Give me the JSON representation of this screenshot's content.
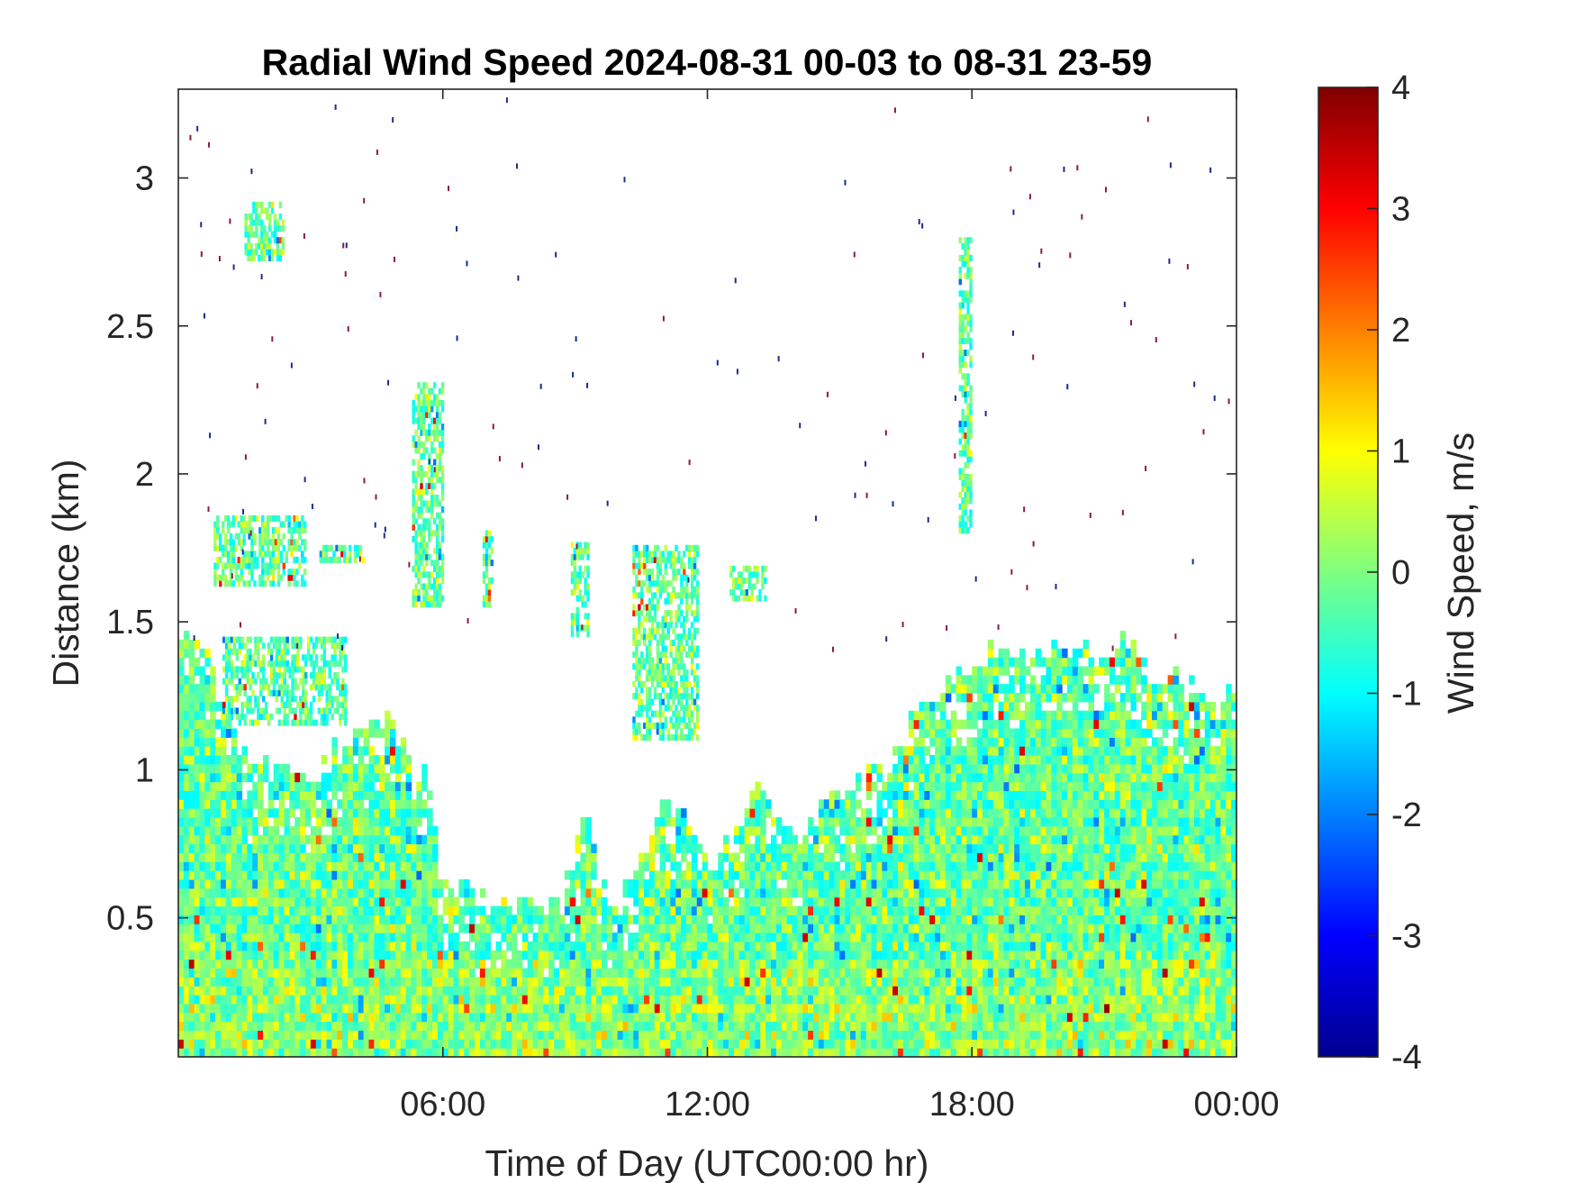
{
  "chart_data": {
    "type": "heatmap",
    "title": "Radial Wind Speed 2024-08-31 00-03 to 08-31 23-59",
    "xlabel": "Time of Day (UTC00:00 hr)",
    "ylabel": "Distance (km)",
    "colorbar_label": "Wind Speed, m/s",
    "colormap": "jet",
    "xlim_hours": [
      0,
      24
    ],
    "ylim_km": [
      0.03,
      3.3
    ],
    "clim": [
      -4,
      4
    ],
    "x_ticks": [
      {
        "hour": 6,
        "label": "06:00"
      },
      {
        "hour": 12,
        "label": "12:00"
      },
      {
        "hour": 18,
        "label": "18:00"
      },
      {
        "hour": 24,
        "label": "00:00"
      }
    ],
    "y_ticks": [
      {
        "km": 0.5,
        "label": "0.5"
      },
      {
        "km": 1,
        "label": "1"
      },
      {
        "km": 1.5,
        "label": "1.5"
      },
      {
        "km": 2,
        "label": "2"
      },
      {
        "km": 2.5,
        "label": "2.5"
      },
      {
        "km": 3,
        "label": "3"
      }
    ],
    "colorbar_ticks": [
      {
        "value": 4,
        "label": "4"
      },
      {
        "value": 3,
        "label": "3"
      },
      {
        "value": 2,
        "label": "2"
      },
      {
        "value": 1,
        "label": "1"
      },
      {
        "value": 0,
        "label": "0"
      },
      {
        "value": -1,
        "label": "-1"
      },
      {
        "value": -2,
        "label": "-2"
      },
      {
        "value": -3,
        "label": "-3"
      },
      {
        "value": -4,
        "label": "-4"
      }
    ],
    "data_top_km": [
      [
        0,
        1.42
      ],
      [
        0.6,
        1.42
      ],
      [
        1.0,
        1.25
      ],
      [
        1.3,
        1.05
      ],
      [
        1.8,
        0.98
      ],
      [
        2.5,
        1.0
      ],
      [
        3.0,
        0.95
      ],
      [
        3.5,
        1.05
      ],
      [
        4.0,
        1.12
      ],
      [
        4.6,
        1.15
      ],
      [
        5.0,
        1.1
      ],
      [
        5.3,
        0.95
      ],
      [
        5.6,
        1.0
      ],
      [
        5.9,
        0.6
      ],
      [
        6.3,
        0.58
      ],
      [
        7.0,
        0.55
      ],
      [
        8.0,
        0.55
      ],
      [
        8.6,
        0.52
      ],
      [
        9.2,
        0.85
      ],
      [
        9.5,
        0.6
      ],
      [
        10.0,
        0.55
      ],
      [
        10.5,
        0.72
      ],
      [
        11.0,
        0.9
      ],
      [
        11.5,
        0.8
      ],
      [
        12.0,
        0.65
      ],
      [
        12.5,
        0.75
      ],
      [
        13.0,
        0.95
      ],
      [
        13.5,
        0.85
      ],
      [
        14.0,
        0.75
      ],
      [
        14.5,
        0.85
      ],
      [
        15.0,
        0.9
      ],
      [
        15.5,
        0.95
      ],
      [
        16.2,
        1.05
      ],
      [
        16.8,
        1.2
      ],
      [
        17.5,
        1.3
      ],
      [
        18.0,
        1.35
      ],
      [
        18.5,
        1.4
      ],
      [
        19.0,
        1.38
      ],
      [
        19.5,
        1.35
      ],
      [
        20.0,
        1.42
      ],
      [
        20.5,
        1.42
      ],
      [
        21.0,
        1.38
      ],
      [
        21.5,
        1.45
      ],
      [
        22.0,
        1.3
      ],
      [
        22.5,
        1.32
      ],
      [
        23.0,
        1.25
      ],
      [
        23.5,
        1.22
      ],
      [
        24.0,
        1.28
      ]
    ],
    "echo_patches": [
      {
        "t": [
          1.5,
          2.4
        ],
        "km": [
          2.72,
          2.92
        ]
      },
      {
        "t": [
          0.8,
          2.9
        ],
        "km": [
          1.62,
          1.85
        ]
      },
      {
        "t": [
          1.0,
          3.8
        ],
        "km": [
          1.15,
          1.45
        ]
      },
      {
        "t": [
          3.2,
          4.2
        ],
        "km": [
          1.7,
          1.76
        ]
      },
      {
        "t": [
          5.3,
          6.0
        ],
        "km": [
          1.55,
          2.3
        ]
      },
      {
        "t": [
          6.9,
          7.1
        ],
        "km": [
          1.55,
          1.82
        ]
      },
      {
        "t": [
          8.9,
          9.3
        ],
        "km": [
          1.45,
          1.76
        ]
      },
      {
        "t": [
          10.3,
          11.8
        ],
        "km": [
          1.1,
          1.76
        ]
      },
      {
        "t": [
          12.5,
          13.3
        ],
        "km": [
          1.57,
          1.68
        ]
      },
      {
        "t": [
          17.7,
          17.95
        ],
        "km": [
          1.8,
          2.8
        ]
      }
    ]
  }
}
